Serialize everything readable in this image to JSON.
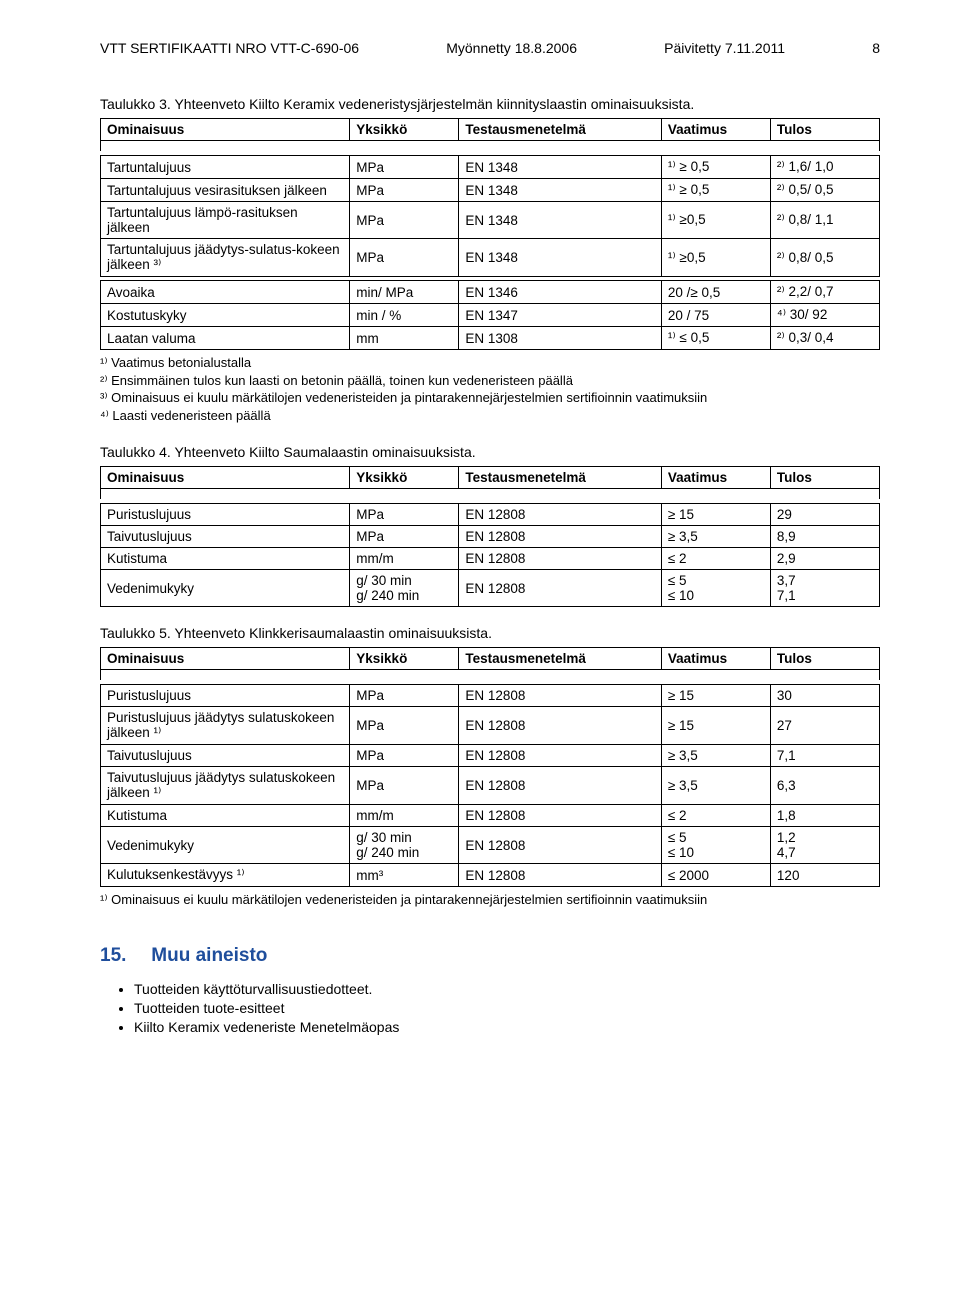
{
  "header": {
    "cert": "VTT SERTIFIKAATTI NRO VTT-C-690-06",
    "issued": "Myönnetty 18.8.2006",
    "updated": "Päivitetty 7.11.2011",
    "page": "8"
  },
  "table3": {
    "title": "Taulukko 3. Yhteenveto Kiilto Keramix vedeneristysjärjestelmän kiinnityslaastin ominaisuuksista.",
    "columns": [
      "Ominaisuus",
      "Yksikkö",
      "Testausmenetelmä",
      "Vaatimus",
      "Tulos"
    ],
    "rows1": [
      {
        "n": "Tartuntalujuus",
        "u": "MPa",
        "m": "EN 1348",
        "v": "¹⁾ ≥ 0,5",
        "t": "²⁾ 1,6/ 1,0"
      },
      {
        "n": "Tartuntalujuus vesirasituksen jälkeen",
        "u": "MPa",
        "m": "EN 1348",
        "v": "¹⁾ ≥ 0,5",
        "t": "²⁾ 0,5/ 0,5"
      },
      {
        "n": "Tartuntalujuus lämpö-rasituksen jälkeen",
        "u": "MPa",
        "m": "EN 1348",
        "v": "¹⁾ ≥0,5",
        "t": "²⁾ 0,8/ 1,1"
      },
      {
        "n": "Tartuntalujuus jäädytys-sulatus-kokeen jälkeen ³⁾",
        "u": "MPa",
        "m": "EN 1348",
        "v": "¹⁾ ≥0,5",
        "t": "²⁾ 0,8/ 0,5"
      }
    ],
    "rows2": [
      {
        "n": "Avoaika",
        "u": "min/ MPa",
        "m": "EN 1346",
        "v": "20 /≥ 0,5",
        "t": "²⁾ 2,2/ 0,7"
      },
      {
        "n": "Kostutuskyky",
        "u": "min / %",
        "m": "EN 1347",
        "v": "20 / 75",
        "t": "⁴⁾ 30/ 92"
      },
      {
        "n": "Laatan valuma",
        "u": "mm",
        "m": "EN 1308",
        "v": "¹⁾ ≤ 0,5",
        "t": "²⁾ 0,3/ 0,4"
      }
    ],
    "footnotes": [
      "¹⁾ Vaatimus betonialustalla",
      "²⁾ Ensimmäinen tulos kun laasti on betonin päällä, toinen kun vedeneristeen päällä",
      "³⁾ Ominaisuus ei kuulu märkätilojen vedeneristeiden ja pintarakennejärjestelmien sertifioinnin vaatimuksiin",
      "⁴⁾ Laasti vedeneristeen päällä"
    ]
  },
  "table4": {
    "title": "Taulukko 4. Yhteenveto Kiilto Saumalaastin ominaisuuksista.",
    "columns": [
      "Ominaisuus",
      "Yksikkö",
      "Testausmenetelmä",
      "Vaatimus",
      "Tulos"
    ],
    "rows": [
      {
        "n": "Puristuslujuus",
        "u": "MPa",
        "m": "EN 12808",
        "v": "≥ 15",
        "t": "29"
      },
      {
        "n": "Taivutuslujuus",
        "u": "MPa",
        "m": "EN 12808",
        "v": "≥ 3,5",
        "t": "8,9"
      },
      {
        "n": "Kutistuma",
        "u": "mm/m",
        "m": "EN 12808",
        "v": "≤ 2",
        "t": "2,9"
      },
      {
        "n": "Vedenimukyky",
        "u": "g/ 30 min\ng/ 240 min",
        "m": "EN 12808",
        "v": "≤ 5\n≤ 10",
        "t": "3,7\n7,1"
      }
    ]
  },
  "table5": {
    "title": "Taulukko 5. Yhteenveto Klinkkerisaumalaastin ominaisuuksista.",
    "columns": [
      "Ominaisuus",
      "Yksikkö",
      "Testausmenetelmä",
      "Vaatimus",
      "Tulos"
    ],
    "rows": [
      {
        "n": "Puristuslujuus",
        "u": "MPa",
        "m": "EN 12808",
        "v": "≥ 15",
        "t": "30"
      },
      {
        "n": "Puristuslujuus jäädytys sulatuskokeen jälkeen ¹⁾",
        "u": "MPa",
        "m": "EN 12808",
        "v": "≥ 15",
        "t": "27"
      },
      {
        "n": "Taivutuslujuus",
        "u": "MPa",
        "m": "EN 12808",
        "v": "≥ 3,5",
        "t": "7,1"
      },
      {
        "n": "Taivutuslujuus jäädytys sulatuskokeen jälkeen ¹⁾",
        "u": "MPa",
        "m": "EN 12808",
        "v": "≥ 3,5",
        "t": "6,3"
      },
      {
        "n": "Kutistuma",
        "u": "mm/m",
        "m": "EN 12808",
        "v": "≤ 2",
        "t": "1,8"
      },
      {
        "n": "Vedenimukyky",
        "u": "g/ 30 min\ng/ 240 min",
        "m": "EN 12808",
        "v": "≤ 5\n≤ 10",
        "t": "1,2\n4,7"
      },
      {
        "n": "Kulutuksenkestävyys ¹⁾",
        "u": "mm³",
        "m": "EN 12808",
        "v": "≤ 2000",
        "t": "120"
      }
    ],
    "footnote": "¹⁾ Ominaisuus ei kuulu märkätilojen vedeneristeiden ja pintarakennejärjestelmien sertifioinnin vaatimuksiin"
  },
  "section": {
    "num": "15.",
    "title": "Muu aineisto",
    "bullets": [
      "Tuotteiden käyttöturvallisuustiedotteet.",
      "Tuotteiden tuote-esitteet",
      "Kiilto Keramix vedeneriste Menetelmäopas"
    ]
  },
  "colors": {
    "heading": "#1f4e9c",
    "text": "#000000",
    "border": "#000000",
    "bg": "#ffffff"
  }
}
